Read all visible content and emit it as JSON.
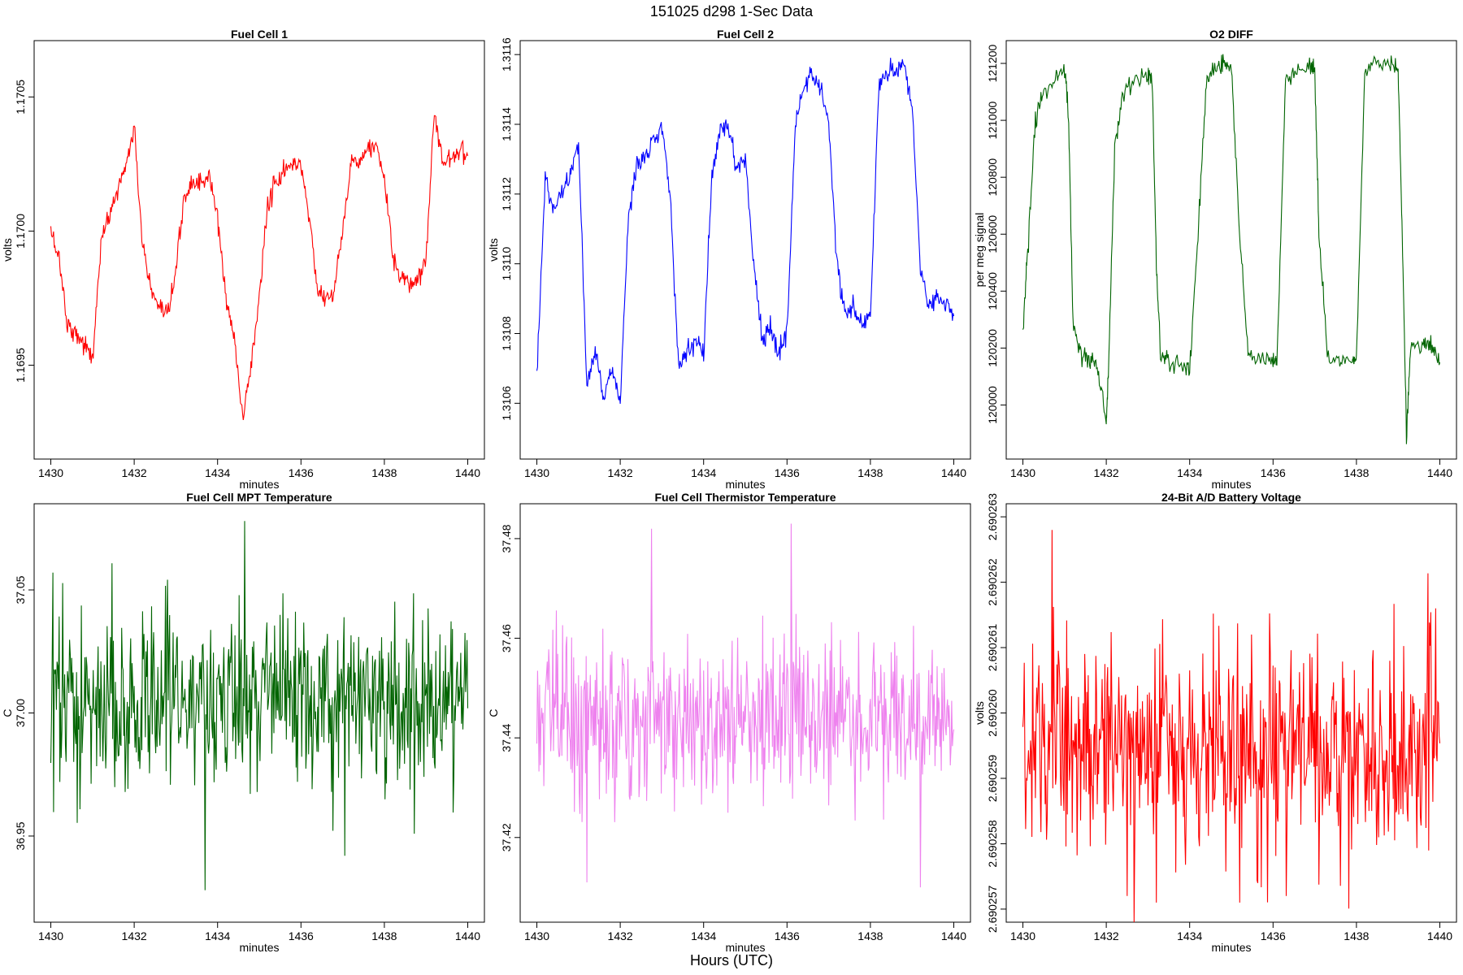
{
  "figure": {
    "title": "151025   d298   1-Sec Data",
    "outer_xlabel": "Hours (UTC)"
  },
  "chart_data": [
    {
      "id": "fc1",
      "type": "line",
      "title": "Fuel Cell 1",
      "xlabel": "minutes",
      "ylabel": "volts",
      "color": "#ff0000",
      "xlim": [
        1430,
        1440
      ],
      "ylim": [
        1.16915,
        1.17071
      ],
      "xticks": [
        1430,
        1432,
        1434,
        1436,
        1438,
        1440
      ],
      "yticks": [
        "1.1695",
        "1.1700",
        "1.1705"
      ],
      "x": [
        1430.0,
        1430.2,
        1430.4,
        1430.6,
        1430.8,
        1431.0,
        1431.2,
        1431.4,
        1431.6,
        1431.8,
        1432.0,
        1432.2,
        1432.4,
        1432.6,
        1432.8,
        1433.0,
        1433.2,
        1433.4,
        1433.6,
        1433.8,
        1434.0,
        1434.2,
        1434.4,
        1434.6,
        1434.8,
        1435.0,
        1435.2,
        1435.4,
        1435.6,
        1435.8,
        1436.0,
        1436.2,
        1436.4,
        1436.6,
        1436.8,
        1437.0,
        1437.2,
        1437.4,
        1437.6,
        1437.8,
        1438.0,
        1438.2,
        1438.4,
        1438.6,
        1438.8,
        1439.0,
        1439.2,
        1439.4,
        1439.6,
        1439.8,
        1440.0
      ],
      "y": [
        1.17,
        1.1699,
        1.16965,
        1.16962,
        1.16958,
        1.16952,
        1.16995,
        1.17006,
        1.17015,
        1.17025,
        1.17038,
        1.16995,
        1.16978,
        1.1697,
        1.16968,
        1.16985,
        1.17013,
        1.17018,
        1.17018,
        1.1702,
        1.17005,
        1.16975,
        1.1696,
        1.1693,
        1.1695,
        1.16975,
        1.1701,
        1.17018,
        1.17022,
        1.17025,
        1.17025,
        1.17005,
        1.16978,
        1.16975,
        1.16978,
        1.17,
        1.17025,
        1.17028,
        1.1703,
        1.17032,
        1.1702,
        1.1699,
        1.16982,
        1.1698,
        1.16982,
        1.1699,
        1.17045,
        1.17025,
        1.17028,
        1.1703,
        1.17028
      ]
    },
    {
      "id": "fc2",
      "type": "line",
      "title": "Fuel Cell 2",
      "xlabel": "minutes",
      "ylabel": "volts",
      "color": "#0000ff",
      "xlim": [
        1430,
        1440
      ],
      "ylim": [
        1.31044,
        1.31164
      ],
      "xticks": [
        1430,
        1432,
        1434,
        1436,
        1438,
        1440
      ],
      "yticks": [
        "1.3106",
        "1.3108",
        "1.3110",
        "1.3112",
        "1.3114",
        "1.3116"
      ],
      "x": [
        1430.0,
        1430.2,
        1430.4,
        1430.6,
        1430.8,
        1431.0,
        1431.2,
        1431.4,
        1431.6,
        1431.8,
        1432.0,
        1432.2,
        1432.4,
        1432.6,
        1432.8,
        1433.0,
        1433.2,
        1433.4,
        1433.6,
        1433.8,
        1434.0,
        1434.2,
        1434.4,
        1434.6,
        1434.8,
        1435.0,
        1435.2,
        1435.4,
        1435.6,
        1435.8,
        1436.0,
        1436.2,
        1436.4,
        1436.6,
        1436.8,
        1437.0,
        1437.2,
        1437.4,
        1437.6,
        1437.8,
        1438.0,
        1438.2,
        1438.4,
        1438.6,
        1438.8,
        1439.0,
        1439.2,
        1439.4,
        1439.6,
        1439.8,
        1440.0
      ],
      "y": [
        1.31068,
        1.31125,
        1.31115,
        1.31122,
        1.31125,
        1.31135,
        1.31065,
        1.31075,
        1.31062,
        1.3107,
        1.3106,
        1.31115,
        1.31128,
        1.3113,
        1.31135,
        1.3114,
        1.3112,
        1.3107,
        1.31075,
        1.31078,
        1.31075,
        1.31125,
        1.3114,
        1.31138,
        1.31128,
        1.3113,
        1.311,
        1.31078,
        1.31082,
        1.31075,
        1.3108,
        1.3114,
        1.3115,
        1.31155,
        1.3115,
        1.3114,
        1.311,
        1.31085,
        1.31088,
        1.31082,
        1.31085,
        1.3115,
        1.31155,
        1.31155,
        1.31158,
        1.31145,
        1.311,
        1.31088,
        1.3109,
        1.31088,
        1.31085
      ]
    },
    {
      "id": "o2",
      "type": "line",
      "title": "O2 DIFF",
      "xlabel": "minutes",
      "ylabel": "per meg signal",
      "color": "#006400",
      "xlim": [
        1430,
        1440
      ],
      "ylim": [
        119810,
        121280
      ],
      "xticks": [
        1430,
        1432,
        1434,
        1436,
        1438,
        1440
      ],
      "yticks": [
        "120000",
        "120200",
        "120400",
        "120600",
        "120800",
        "121000",
        "121200"
      ],
      "x": [
        1430.0,
        1430.1,
        1430.3,
        1430.5,
        1430.8,
        1431.0,
        1431.1,
        1431.2,
        1431.4,
        1431.6,
        1431.8,
        1432.0,
        1432.05,
        1432.2,
        1432.4,
        1432.7,
        1433.0,
        1433.1,
        1433.2,
        1433.3,
        1433.5,
        1433.8,
        1434.0,
        1434.2,
        1434.4,
        1434.6,
        1434.8,
        1435.0,
        1435.2,
        1435.4,
        1435.7,
        1436.0,
        1436.1,
        1436.3,
        1436.6,
        1436.9,
        1437.0,
        1437.1,
        1437.3,
        1437.6,
        1437.9,
        1438.0,
        1438.2,
        1438.5,
        1438.8,
        1439.0,
        1439.1,
        1439.2,
        1439.3,
        1439.6,
        1439.8,
        1440.0
      ],
      "y": [
        120250,
        120500,
        121000,
        121100,
        121150,
        121180,
        121000,
        120280,
        120180,
        120160,
        120130,
        119940,
        120100,
        120900,
        121100,
        121140,
        121160,
        121150,
        120500,
        120180,
        120150,
        120140,
        120120,
        120600,
        121150,
        121180,
        121200,
        121190,
        120600,
        120180,
        120160,
        120150,
        120160,
        121150,
        121180,
        121190,
        121180,
        120600,
        120170,
        120150,
        120160,
        120160,
        121180,
        121200,
        121200,
        121190,
        120600,
        119900,
        120200,
        120220,
        120200,
        120150
      ]
    },
    {
      "id": "mpt",
      "type": "line",
      "title": "Fuel Cell MPT Temperature",
      "xlabel": "minutes",
      "ylabel": "C",
      "color": "#006400",
      "xlim": [
        1430,
        1440
      ],
      "ylim": [
        36.915,
        37.085
      ],
      "xticks": [
        1430,
        1432,
        1434,
        1436,
        1438,
        1440
      ],
      "yticks": [
        "36.95",
        "37.00",
        "37.05"
      ],
      "noise_mean": 37.005,
      "noise_sd": 0.018,
      "notable_points": [
        {
          "x": 1430.05,
          "y": 37.057
        },
        {
          "x": 1433.7,
          "y": 36.928
        },
        {
          "x": 1434.65,
          "y": 37.078
        },
        {
          "x": 1437.05,
          "y": 36.942
        }
      ]
    },
    {
      "id": "thermistor",
      "type": "line",
      "title": "Fuel Cell Thermistor Temperature",
      "xlabel": "minutes",
      "ylabel": "C",
      "color": "#ee82ee",
      "xlim": [
        1430,
        1440
      ],
      "ylim": [
        37.403,
        37.487
      ],
      "xticks": [
        1430,
        1432,
        1434,
        1436,
        1438,
        1440
      ],
      "yticks": [
        "37.42",
        "37.44",
        "37.46",
        "37.48"
      ],
      "noise_mean": 37.444,
      "noise_sd": 0.008,
      "notable_points": [
        {
          "x": 1431.2,
          "y": 37.411
        },
        {
          "x": 1432.75,
          "y": 37.482
        },
        {
          "x": 1436.1,
          "y": 37.483
        },
        {
          "x": 1439.2,
          "y": 37.41
        }
      ]
    },
    {
      "id": "battery",
      "type": "line",
      "title": "24-Bit A/D Battery Voltage",
      "xlabel": "minutes",
      "ylabel": "volts",
      "color": "#ff0000",
      "xlim": [
        1430,
        1440
      ],
      "ylim": [
        2.6902568,
        2.6902632
      ],
      "xticks": [
        1430,
        1432,
        1434,
        1436,
        1438,
        1440
      ],
      "yticks": [
        "2.690257",
        "2.690258",
        "2.690259",
        "2.690260",
        "2.690261",
        "2.690262",
        "2.690263"
      ],
      "noise_mean": 2.6902595,
      "noise_sd": 8.5e-07,
      "notable_points": [
        {
          "x": 1430.7,
          "y": 2.6902628
        },
        {
          "x": 1432.5,
          "y": 2.6902572
        },
        {
          "x": 1433.2,
          "y": 2.6902571
        },
        {
          "x": 1435.2,
          "y": 2.6902571
        },
        {
          "x": 1439.9,
          "y": 2.6902616
        }
      ]
    }
  ]
}
